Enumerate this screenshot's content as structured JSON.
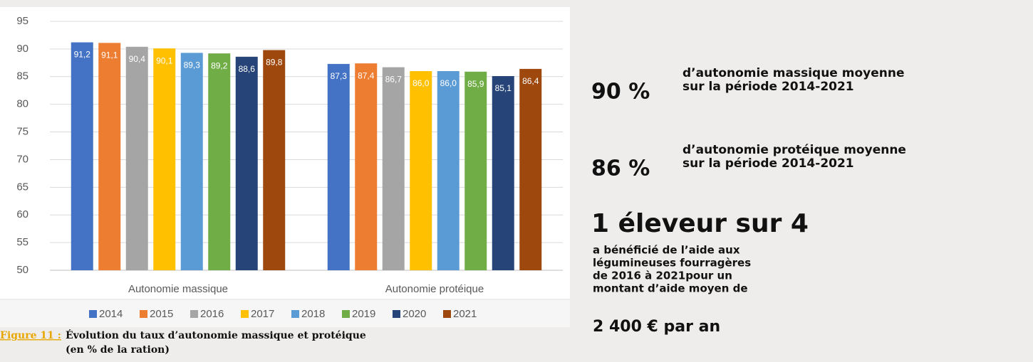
{
  "chart_data": {
    "type": "bar",
    "categories": [
      "Autonomie massique",
      "Autonomie protéique"
    ],
    "series": [
      {
        "name": "2014",
        "color": "#4472c4",
        "values": [
          91.2,
          87.3
        ],
        "value_labels": [
          "91,2",
          "87,3"
        ]
      },
      {
        "name": "2015",
        "color": "#ed7d31",
        "values": [
          91.1,
          87.4
        ],
        "value_labels": [
          "91,1",
          "87,4"
        ]
      },
      {
        "name": "2016",
        "color": "#a5a5a5",
        "values": [
          90.4,
          86.7
        ],
        "value_labels": [
          "90,4",
          "86,7"
        ]
      },
      {
        "name": "2017",
        "color": "#ffc000",
        "values": [
          90.1,
          86.0
        ],
        "value_labels": [
          "90,1",
          "86,0"
        ]
      },
      {
        "name": "2018",
        "color": "#5b9bd5",
        "values": [
          89.3,
          86.0
        ],
        "value_labels": [
          "89,3",
          "86,0"
        ]
      },
      {
        "name": "2019",
        "color": "#70ad47",
        "values": [
          89.2,
          85.9
        ],
        "value_labels": [
          "89,2",
          "85,9"
        ]
      },
      {
        "name": "2020",
        "color": "#264478",
        "values": [
          88.6,
          85.1
        ],
        "value_labels": [
          "88,6",
          "85,1"
        ]
      },
      {
        "name": "2021",
        "color": "#9e480e",
        "values": [
          89.8,
          86.4
        ],
        "value_labels": [
          "89,8",
          "86,4"
        ]
      }
    ],
    "ylim": [
      50,
      95
    ],
    "yticks": [
      50,
      55,
      60,
      65,
      70,
      75,
      80,
      85,
      90,
      95
    ],
    "grid": true,
    "legend": "bottom"
  },
  "caption": {
    "label": "Figure 11 :",
    "lines": [
      "Évolution du taux d’autonomie massique et protéique",
      "(en % de la ration)"
    ]
  },
  "highlights": [
    {
      "value": "90 %",
      "lines": [
        "d’autonomie massique moyenne",
        "sur la période 2014-2021"
      ]
    },
    {
      "value": "86 %",
      "lines": [
        "d’autonomie protéique moyenne",
        "sur la période 2014-2021"
      ]
    },
    {
      "value": "1 éleveur sur 4",
      "lines": [
        "a bénéficié de l’aide aux",
        "légumineuses fourragères",
        "de 2016 à 2021pour un",
        "montant d’aide moyen de"
      ],
      "amount": "2 400 € par an"
    }
  ]
}
